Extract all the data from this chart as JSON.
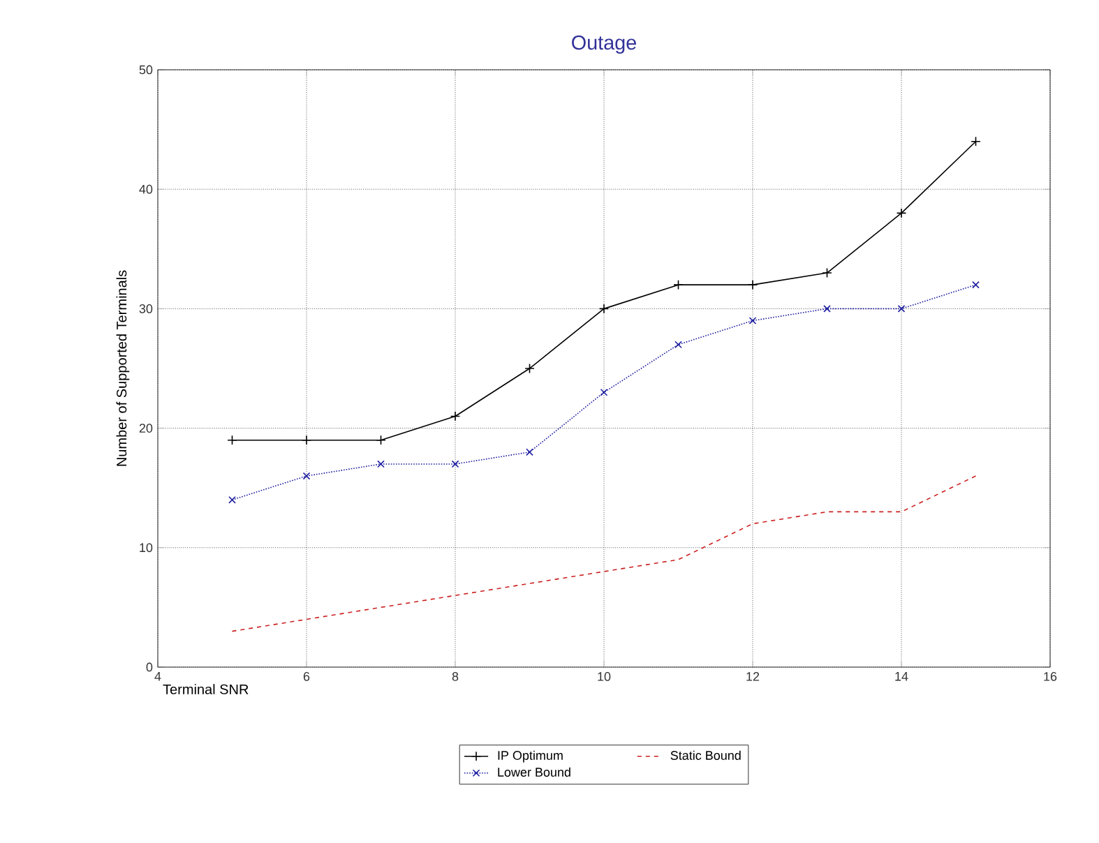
{
  "chart_data": {
    "type": "line",
    "title": "Outage",
    "xlabel": "Terminal SNR",
    "ylabel": "Number of Supported Terminals",
    "x": [
      5,
      6,
      7,
      8,
      9,
      10,
      11,
      12,
      13,
      14,
      15
    ],
    "series": [
      {
        "name": "IP Optimum",
        "color": "#000000",
        "marker": "plus",
        "line_style": "solid",
        "values": [
          19,
          19,
          19,
          21,
          25,
          30,
          32,
          32,
          33,
          38,
          44
        ]
      },
      {
        "name": "Lower Bound",
        "color": "#1c1ca0",
        "marker": "cross",
        "line_style": "dotted",
        "values": [
          14,
          16,
          17,
          17,
          18,
          23,
          27,
          29,
          30,
          30,
          32
        ]
      },
      {
        "name": "Static Bound",
        "color": "#cc2020",
        "marker": "none",
        "line_style": "dashed",
        "values": [
          3,
          4,
          5,
          6,
          7,
          8,
          9,
          12,
          13,
          13,
          16
        ]
      }
    ],
    "xlim": [
      4,
      16
    ],
    "ylim": [
      0,
      50
    ],
    "xticks": [
      4,
      6,
      8,
      10,
      12,
      14,
      16
    ],
    "yticks": [
      0,
      10,
      20,
      30,
      40,
      50
    ],
    "grid": true,
    "legend": "bottom"
  }
}
